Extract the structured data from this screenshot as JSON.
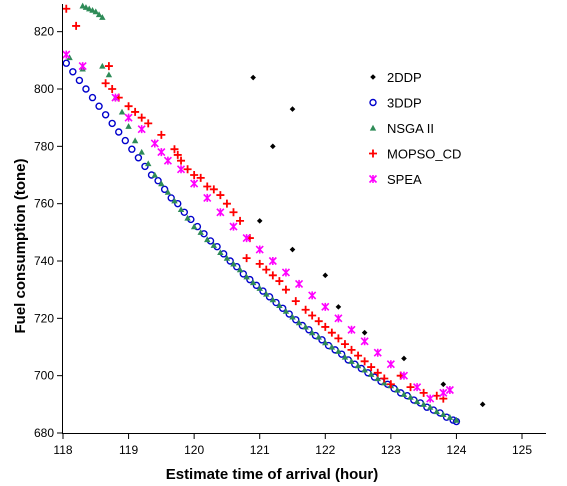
{
  "chart_data": {
    "type": "scatter",
    "title": "",
    "xlabel": "Estimate time of arrival (hour)",
    "ylabel": "Fuel consumption (tone)",
    "xlim": [
      118,
      125
    ],
    "ylim": [
      680,
      830
    ],
    "xticks": [
      "118",
      "119",
      "120",
      "121",
      "122",
      "123",
      "124",
      "125"
    ],
    "yticks": [
      "680",
      "700",
      "720",
      "740",
      "760",
      "780",
      "800",
      "820"
    ],
    "grid": false,
    "legend_position": "top-right",
    "series": [
      {
        "name": "2DDP",
        "marker": "diamond",
        "color": "#000000",
        "points": [
          [
            120.9,
            804
          ],
          [
            121.5,
            793
          ],
          [
            121.2,
            780
          ],
          [
            121.0,
            754
          ],
          [
            121.5,
            744
          ],
          [
            122.0,
            735
          ],
          [
            122.2,
            724
          ],
          [
            122.6,
            715
          ],
          [
            123.2,
            706
          ],
          [
            123.8,
            697
          ],
          [
            124.4,
            690
          ]
        ]
      },
      {
        "name": "3DDP",
        "marker": "open-circle",
        "color": "#0000cc",
        "points": [
          [
            118.05,
            809
          ],
          [
            118.15,
            806
          ],
          [
            118.25,
            803
          ],
          [
            118.35,
            800
          ],
          [
            118.45,
            797
          ],
          [
            118.55,
            794
          ],
          [
            118.65,
            791
          ],
          [
            118.75,
            788
          ],
          [
            118.85,
            785
          ],
          [
            118.95,
            782
          ],
          [
            119.05,
            779
          ],
          [
            119.15,
            776
          ],
          [
            119.25,
            773
          ],
          [
            119.35,
            770
          ],
          [
            119.45,
            768
          ],
          [
            119.55,
            765
          ],
          [
            119.65,
            762
          ],
          [
            119.75,
            760
          ],
          [
            119.85,
            757
          ],
          [
            119.95,
            754.5
          ],
          [
            120.05,
            752
          ],
          [
            120.15,
            749.5
          ],
          [
            120.25,
            747
          ],
          [
            120.35,
            745
          ],
          [
            120.45,
            742.5
          ],
          [
            120.55,
            740
          ],
          [
            120.65,
            738
          ],
          [
            120.75,
            735.5
          ],
          [
            120.85,
            733.5
          ],
          [
            120.95,
            731.5
          ],
          [
            121.05,
            729.5
          ],
          [
            121.15,
            727.5
          ],
          [
            121.25,
            725.5
          ],
          [
            121.35,
            723.5
          ],
          [
            121.45,
            721.5
          ],
          [
            121.55,
            719.5
          ],
          [
            121.65,
            717.5
          ],
          [
            121.75,
            716
          ],
          [
            121.85,
            714
          ],
          [
            121.95,
            712.5
          ],
          [
            122.05,
            710.5
          ],
          [
            122.15,
            709
          ],
          [
            122.25,
            707.5
          ],
          [
            122.35,
            705.5
          ],
          [
            122.45,
            704
          ],
          [
            122.55,
            702.5
          ],
          [
            122.65,
            701
          ],
          [
            122.75,
            699.5
          ],
          [
            122.85,
            698
          ],
          [
            122.95,
            697
          ],
          [
            123.05,
            695.5
          ],
          [
            123.15,
            694
          ],
          [
            123.25,
            693
          ],
          [
            123.35,
            691.5
          ],
          [
            123.45,
            690.5
          ],
          [
            123.55,
            689
          ],
          [
            123.65,
            688
          ],
          [
            123.75,
            687
          ],
          [
            123.85,
            685.5
          ],
          [
            123.95,
            684.5
          ],
          [
            124.0,
            684
          ]
        ]
      },
      {
        "name": "NSGA II",
        "marker": "triangle",
        "color": "#2e8b57",
        "points": [
          [
            118.3,
            829
          ],
          [
            118.35,
            828.5
          ],
          [
            118.4,
            828
          ],
          [
            118.45,
            827.5
          ],
          [
            118.5,
            827
          ],
          [
            118.55,
            826
          ],
          [
            118.6,
            825
          ],
          [
            118.1,
            811
          ],
          [
            118.3,
            807
          ],
          [
            118.6,
            808
          ],
          [
            118.7,
            805
          ],
          [
            118.8,
            797
          ],
          [
            118.9,
            792
          ],
          [
            119.0,
            787
          ],
          [
            119.1,
            782
          ],
          [
            119.2,
            778
          ],
          [
            119.3,
            774
          ],
          [
            119.4,
            770
          ],
          [
            119.5,
            767
          ],
          [
            119.6,
            764
          ],
          [
            119.7,
            761
          ],
          [
            119.8,
            758
          ],
          [
            119.9,
            755
          ],
          [
            120.0,
            752
          ],
          [
            120.1,
            750
          ],
          [
            120.2,
            747.5
          ],
          [
            120.3,
            745.5
          ],
          [
            120.4,
            743
          ],
          [
            120.5,
            741
          ],
          [
            120.6,
            739
          ],
          [
            120.7,
            737
          ],
          [
            120.8,
            734.5
          ],
          [
            120.9,
            732.5
          ],
          [
            121.0,
            730.5
          ],
          [
            121.1,
            728.5
          ],
          [
            121.2,
            726.5
          ],
          [
            121.3,
            724.5
          ],
          [
            121.4,
            722.5
          ],
          [
            121.5,
            720.5
          ],
          [
            121.6,
            718.5
          ],
          [
            121.7,
            717
          ],
          [
            121.8,
            715
          ],
          [
            121.9,
            713.5
          ],
          [
            122.0,
            711.5
          ],
          [
            122.1,
            710
          ],
          [
            122.2,
            708.5
          ],
          [
            122.3,
            706.5
          ],
          [
            122.4,
            705
          ],
          [
            122.5,
            703.5
          ],
          [
            122.6,
            702
          ],
          [
            122.7,
            700.5
          ],
          [
            122.8,
            699
          ],
          [
            122.9,
            697.5
          ],
          [
            123.0,
            696.5
          ],
          [
            123.1,
            695
          ],
          [
            123.2,
            693.5
          ],
          [
            123.3,
            692.5
          ],
          [
            123.4,
            691
          ],
          [
            123.5,
            690
          ],
          [
            123.6,
            689
          ],
          [
            123.7,
            687.5
          ],
          [
            123.8,
            686.5
          ],
          [
            123.9,
            685.5
          ],
          [
            124.0,
            684.5
          ]
        ]
      },
      {
        "name": "MOPSO_CD",
        "marker": "plus",
        "color": "#ff0000",
        "points": [
          [
            118.05,
            828
          ],
          [
            118.2,
            822
          ],
          [
            118.7,
            808
          ],
          [
            118.65,
            802
          ],
          [
            118.75,
            800
          ],
          [
            118.85,
            797
          ],
          [
            119.0,
            794
          ],
          [
            119.1,
            792
          ],
          [
            119.2,
            790
          ],
          [
            119.3,
            788
          ],
          [
            119.5,
            784
          ],
          [
            119.7,
            779
          ],
          [
            119.75,
            777
          ],
          [
            119.8,
            775
          ],
          [
            119.9,
            772
          ],
          [
            120.0,
            770
          ],
          [
            120.1,
            769
          ],
          [
            120.2,
            766
          ],
          [
            120.3,
            765
          ],
          [
            120.4,
            763
          ],
          [
            120.5,
            760
          ],
          [
            120.6,
            757
          ],
          [
            120.7,
            754
          ],
          [
            120.85,
            748
          ],
          [
            120.8,
            741
          ],
          [
            121.0,
            739
          ],
          [
            121.1,
            737
          ],
          [
            121.2,
            735
          ],
          [
            121.3,
            733
          ],
          [
            121.4,
            730
          ],
          [
            121.55,
            726
          ],
          [
            121.7,
            723
          ],
          [
            121.8,
            721
          ],
          [
            121.9,
            719
          ],
          [
            122.0,
            717
          ],
          [
            122.1,
            715
          ],
          [
            122.2,
            713
          ],
          [
            122.3,
            711
          ],
          [
            122.4,
            709
          ],
          [
            122.5,
            707
          ],
          [
            122.6,
            705
          ],
          [
            122.7,
            703
          ],
          [
            122.8,
            701
          ],
          [
            122.9,
            699
          ],
          [
            123.0,
            697
          ],
          [
            123.15,
            700
          ],
          [
            123.3,
            696
          ],
          [
            123.5,
            694
          ],
          [
            123.7,
            693
          ],
          [
            123.8,
            692
          ]
        ]
      },
      {
        "name": "SPEA",
        "marker": "asterisk",
        "color": "#ff00ff",
        "points": [
          [
            118.05,
            812
          ],
          [
            118.3,
            808
          ],
          [
            118.8,
            797
          ],
          [
            119.0,
            790
          ],
          [
            119.2,
            786
          ],
          [
            119.4,
            781
          ],
          [
            119.5,
            778
          ],
          [
            119.6,
            775
          ],
          [
            119.8,
            772
          ],
          [
            120.0,
            767
          ],
          [
            120.2,
            762
          ],
          [
            120.4,
            757
          ],
          [
            120.6,
            752
          ],
          [
            120.8,
            748
          ],
          [
            121.0,
            744
          ],
          [
            121.2,
            740
          ],
          [
            121.4,
            736
          ],
          [
            121.6,
            732
          ],
          [
            121.8,
            728
          ],
          [
            122.0,
            724
          ],
          [
            122.2,
            720
          ],
          [
            122.4,
            716
          ],
          [
            122.6,
            712
          ],
          [
            122.8,
            708
          ],
          [
            123.0,
            704
          ],
          [
            123.2,
            700
          ],
          [
            123.4,
            696
          ],
          [
            123.6,
            692
          ],
          [
            123.8,
            694
          ],
          [
            123.9,
            695
          ]
        ]
      }
    ]
  }
}
